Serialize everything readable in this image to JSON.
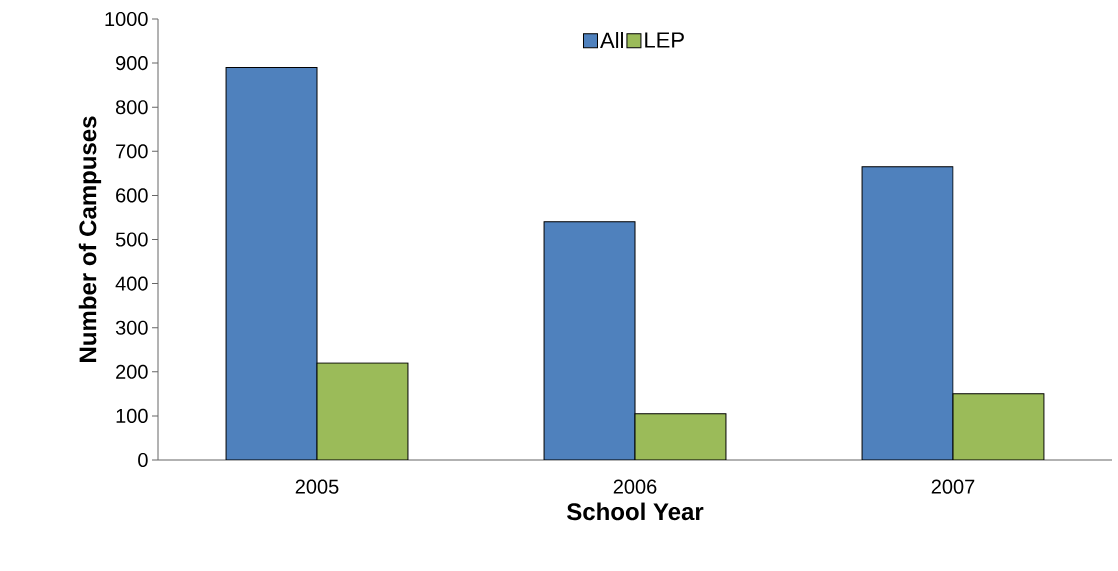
{
  "chart_data": {
    "type": "bar",
    "xlabel": "School Year",
    "ylabel": "Number of Campuses",
    "categories": [
      "2005",
      "2006",
      "2007"
    ],
    "series": [
      {
        "name": "All",
        "color": "#4f81bd",
        "values": [
          890,
          540,
          665
        ]
      },
      {
        "name": "LEP",
        "color": "#9bbb59",
        "values": [
          220,
          105,
          150
        ]
      }
    ],
    "ylim": [
      0,
      1000
    ],
    "yticks": [
      0,
      100,
      200,
      300,
      400,
      500,
      600,
      700,
      800,
      900,
      1000
    ],
    "legend": "top"
  }
}
